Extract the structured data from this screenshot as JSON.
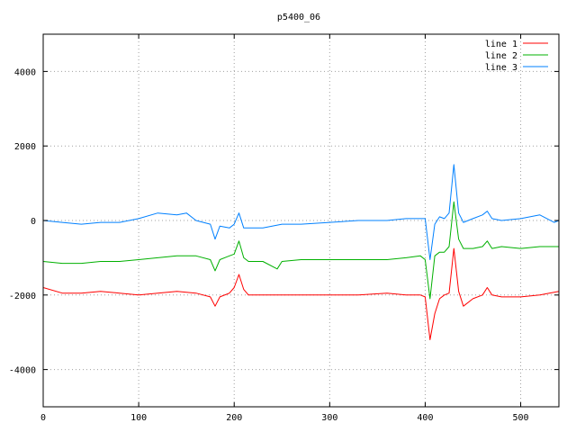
{
  "chart_data": {
    "type": "line",
    "title": "p5400_06",
    "xlabel": "",
    "ylabel": "",
    "xlim": [
      0,
      540
    ],
    "ylim": [
      -5000,
      5000
    ],
    "xticks": [
      0,
      100,
      200,
      300,
      400,
      500
    ],
    "yticks": [
      -4000,
      -2000,
      0,
      2000,
      4000
    ],
    "grid": true,
    "legend_position": "top-right",
    "series": [
      {
        "name": "line 1",
        "color": "#ff0000",
        "x": [
          0,
          20,
          40,
          60,
          80,
          100,
          120,
          140,
          160,
          175,
          180,
          185,
          195,
          200,
          205,
          210,
          215,
          230,
          250,
          280,
          300,
          330,
          360,
          380,
          395,
          400,
          405,
          410,
          415,
          420,
          425,
          430,
          435,
          440,
          450,
          460,
          465,
          470,
          480,
          500,
          520,
          540
        ],
        "y": [
          -1800,
          -1950,
          -1950,
          -1900,
          -1950,
          -2000,
          -1950,
          -1900,
          -1950,
          -2050,
          -2300,
          -2050,
          -1950,
          -1800,
          -1450,
          -1850,
          -2000,
          -2000,
          -2000,
          -2000,
          -2000,
          -2000,
          -1950,
          -2000,
          -2000,
          -2050,
          -3200,
          -2500,
          -2100,
          -2000,
          -1950,
          -750,
          -1900,
          -2300,
          -2100,
          -2000,
          -1800,
          -2000,
          -2050,
          -2050,
          -2000,
          -1900
        ]
      },
      {
        "name": "line 2",
        "color": "#00b000",
        "x": [
          0,
          20,
          40,
          60,
          80,
          100,
          120,
          140,
          160,
          175,
          180,
          185,
          195,
          200,
          205,
          210,
          215,
          230,
          245,
          250,
          270,
          300,
          330,
          360,
          380,
          395,
          400,
          405,
          410,
          415,
          420,
          425,
          430,
          435,
          440,
          450,
          460,
          465,
          470,
          480,
          500,
          520,
          540
        ],
        "y": [
          -1100,
          -1150,
          -1150,
          -1100,
          -1100,
          -1050,
          -1000,
          -950,
          -950,
          -1050,
          -1350,
          -1050,
          -950,
          -900,
          -550,
          -1000,
          -1100,
          -1100,
          -1300,
          -1100,
          -1050,
          -1050,
          -1050,
          -1050,
          -1000,
          -950,
          -1050,
          -2100,
          -950,
          -850,
          -850,
          -700,
          500,
          -500,
          -750,
          -750,
          -700,
          -550,
          -750,
          -700,
          -750,
          -700,
          -700
        ]
      },
      {
        "name": "line 3",
        "color": "#0080ff",
        "x": [
          0,
          20,
          40,
          60,
          80,
          100,
          120,
          140,
          150,
          160,
          175,
          180,
          185,
          195,
          200,
          205,
          210,
          215,
          230,
          250,
          270,
          300,
          330,
          360,
          380,
          395,
          400,
          405,
          410,
          415,
          420,
          425,
          430,
          435,
          440,
          450,
          460,
          465,
          470,
          480,
          500,
          520,
          535,
          540
        ],
        "y": [
          0,
          -50,
          -100,
          -50,
          -50,
          50,
          200,
          150,
          200,
          0,
          -100,
          -500,
          -150,
          -200,
          -100,
          200,
          -200,
          -200,
          -200,
          -100,
          -100,
          -50,
          0,
          0,
          50,
          50,
          50,
          -1050,
          -100,
          100,
          50,
          200,
          1500,
          200,
          -50,
          50,
          150,
          250,
          50,
          0,
          50,
          150,
          -50,
          0
        ]
      }
    ]
  }
}
